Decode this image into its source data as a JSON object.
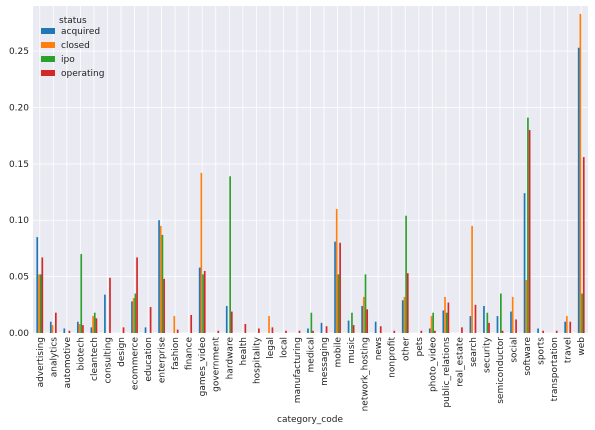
{
  "chart_data": {
    "type": "bar",
    "xlabel": "category_code",
    "ylabel": "",
    "ylim": [
      0,
      0.29
    ],
    "yticks": [
      0.0,
      0.05,
      0.1,
      0.15,
      0.2,
      0.25
    ],
    "ytick_labels": [
      "0.00",
      "0.05",
      "0.10",
      "0.15",
      "0.20",
      "0.25"
    ],
    "grid": true,
    "legend": {
      "title": "status",
      "placement": "top-left"
    },
    "categories": [
      "advertising",
      "analytics",
      "automotive",
      "biotech",
      "cleantech",
      "consulting",
      "design",
      "ecommerce",
      "education",
      "enterprise",
      "fashion",
      "finance",
      "games_video",
      "government",
      "hardware",
      "health",
      "hospitality",
      "legal",
      "local",
      "manufacturing",
      "medical",
      "messaging",
      "mobile",
      "music",
      "network_hosting",
      "news",
      "nonprofit",
      "other",
      "pets",
      "photo_video",
      "public_relations",
      "real_estate",
      "search",
      "security",
      "semiconductor",
      "social",
      "software",
      "sports",
      "transportation",
      "travel",
      "web"
    ],
    "series": [
      {
        "name": "acquired",
        "color": "#1f77b4",
        "values": [
          0.085,
          0.01,
          0.004,
          0.01,
          0.005,
          0.034,
          0.0,
          0.028,
          0.005,
          0.1,
          0.0,
          0.0,
          0.058,
          0.0,
          0.024,
          0.0,
          0.0,
          0.0,
          0.0,
          0.0,
          0.004,
          0.009,
          0.081,
          0.011,
          0.024,
          0.01,
          0.0,
          0.029,
          0.0,
          0.004,
          0.02,
          0.0,
          0.015,
          0.024,
          0.015,
          0.019,
          0.124,
          0.004,
          0.0,
          0.01,
          0.253
        ]
      },
      {
        "name": "closed",
        "color": "#ff7f0e",
        "values": [
          0.052,
          0.007,
          0.0,
          0.008,
          0.015,
          0.0,
          0.0,
          0.031,
          0.0,
          0.095,
          0.015,
          0.0,
          0.142,
          0.0,
          0.0,
          0.0,
          0.0,
          0.015,
          0.0,
          0.0,
          0.0,
          0.0,
          0.11,
          0.0,
          0.032,
          0.0,
          0.0,
          0.032,
          0.0,
          0.015,
          0.032,
          0.0,
          0.095,
          0.0,
          0.0,
          0.032,
          0.047,
          0.0,
          0.0,
          0.015,
          0.283
        ]
      },
      {
        "name": "ipo",
        "color": "#2ca02c",
        "values": [
          0.052,
          0.0,
          0.0,
          0.07,
          0.018,
          0.0,
          0.0,
          0.035,
          0.0,
          0.087,
          0.0,
          0.0,
          0.052,
          0.0,
          0.139,
          0.0,
          0.0,
          0.0,
          0.0,
          0.0,
          0.018,
          0.0,
          0.052,
          0.018,
          0.052,
          0.0,
          0.0,
          0.104,
          0.0,
          0.018,
          0.018,
          0.0,
          0.0,
          0.018,
          0.035,
          0.0,
          0.191,
          0.0,
          0.0,
          0.0,
          0.035
        ]
      },
      {
        "name": "operating",
        "color": "#d62728",
        "values": [
          0.067,
          0.018,
          0.002,
          0.007,
          0.013,
          0.049,
          0.005,
          0.067,
          0.023,
          0.048,
          0.003,
          0.016,
          0.055,
          0.002,
          0.019,
          0.008,
          0.004,
          0.005,
          0.002,
          0.002,
          0.002,
          0.006,
          0.08,
          0.007,
          0.021,
          0.006,
          0.002,
          0.053,
          0.002,
          0.002,
          0.027,
          0.005,
          0.025,
          0.009,
          0.002,
          0.012,
          0.18,
          0.002,
          0.002,
          0.01,
          0.156
        ]
      }
    ]
  }
}
